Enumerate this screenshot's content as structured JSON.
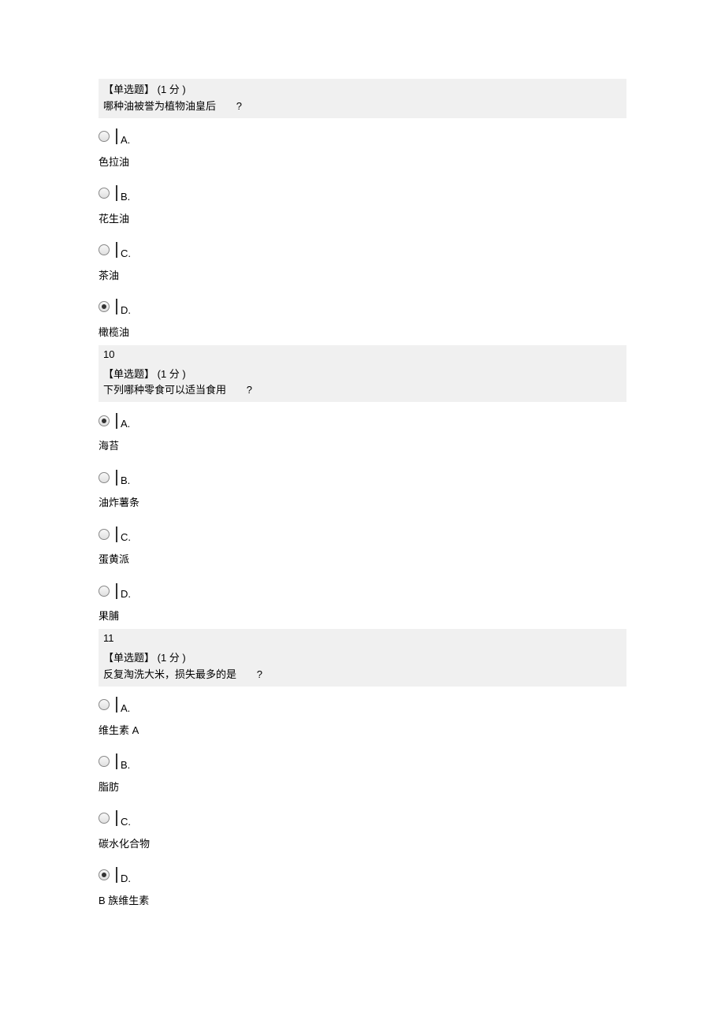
{
  "questions": [
    {
      "type_label": "【单选题】",
      "points": "(1  分 )",
      "prompt": "哪种油被誉为植物油皇后",
      "prompt_suffix": "?",
      "options": [
        {
          "letter": "A.",
          "text": "色拉油",
          "selected": false
        },
        {
          "letter": "B.",
          "text": "花生油",
          "selected": false
        },
        {
          "letter": "C.",
          "text": "茶油",
          "selected": false
        },
        {
          "letter": "D.",
          "text": "橄榄油",
          "selected": true
        }
      ]
    },
    {
      "number": "10",
      "type_label": "【单选题】",
      "points": "(1  分 )",
      "prompt": "下列哪种零食可以适当食用",
      "prompt_suffix": "?",
      "options": [
        {
          "letter": "A.",
          "text": "海苔",
          "selected": true
        },
        {
          "letter": "B.",
          "text": "油炸薯条",
          "selected": false
        },
        {
          "letter": "C.",
          "text": "蛋黄派",
          "selected": false
        },
        {
          "letter": "D.",
          "text": "果脯",
          "selected": false
        }
      ]
    },
    {
      "number": "11",
      "type_label": "【单选题】",
      "points": "(1  分 )",
      "prompt": "反复淘洗大米，损失最多的是",
      "prompt_suffix": "?",
      "options": [
        {
          "letter": "A.",
          "text": "维生素 A",
          "selected": false
        },
        {
          "letter": "B.",
          "text": "脂肪",
          "selected": false
        },
        {
          "letter": "C.",
          "text": "碳水化合物",
          "selected": false
        },
        {
          "letter": "D.",
          "text": "B 族维生素",
          "selected": true
        }
      ]
    }
  ]
}
